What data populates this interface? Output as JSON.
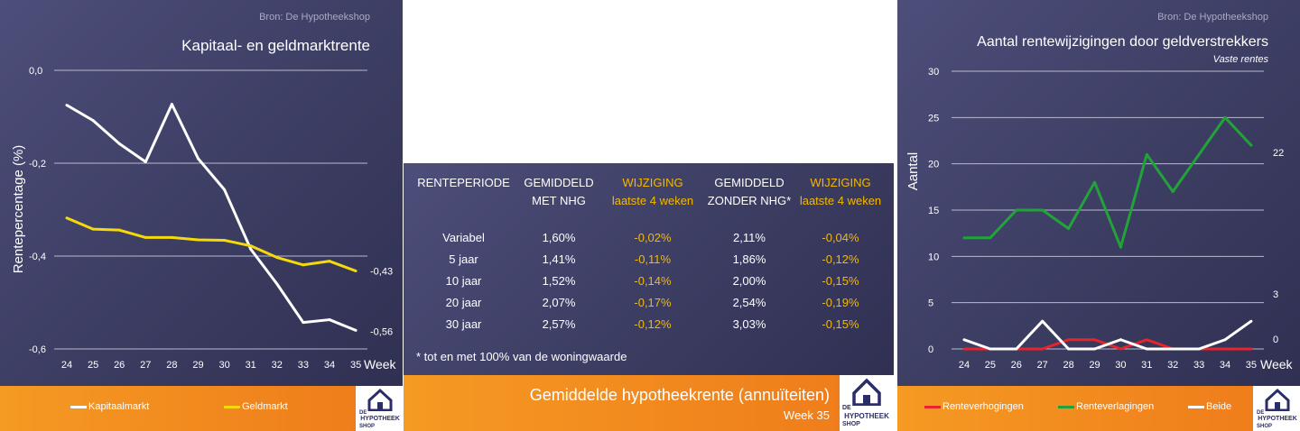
{
  "left_panel": {
    "source": "Bron: De Hypotheekshop",
    "title": "Kapitaal- en geldmarktrente",
    "legend": [
      "Kapitaalmarkt",
      "Geldmarkt"
    ]
  },
  "middle_panel": {
    "headers": [
      {
        "line1": "RENTEPERIODE",
        "line2": ""
      },
      {
        "line1": "GEMIDDELD",
        "line2": "MET NHG"
      },
      {
        "line1": "WIJZIGING",
        "line2": "laatste 4 weken"
      },
      {
        "line1": "GEMIDDELD",
        "line2": "ZONDER NHG*"
      },
      {
        "line1": "WIJZIGING",
        "line2": "laatste 4 weken"
      }
    ],
    "rows": [
      [
        "Variabel",
        "1,60%",
        "-0,02%",
        "2,11%",
        "-0,04%"
      ],
      [
        "5 jaar",
        "1,41%",
        "-0,11%",
        "1,86%",
        "-0,12%"
      ],
      [
        "10 jaar",
        "1,52%",
        "-0,14%",
        "2,00%",
        "-0,15%"
      ],
      [
        "20 jaar",
        "2,07%",
        "-0,17%",
        "2,54%",
        "-0,19%"
      ],
      [
        "30 jaar",
        "2,57%",
        "-0,12%",
        "3,03%",
        "-0,15%"
      ]
    ],
    "footnote": "* tot en met 100% van de woningwaarde",
    "footer_title": "Gemiddelde hypotheekrente (annuïteiten)",
    "footer_week": "Week 35"
  },
  "right_panel": {
    "source": "Bron: De Hypotheekshop",
    "title": "Aantal rentewijzigingen door geldverstrekkers",
    "subtitle": "Vaste rentes",
    "legend": [
      "Renteverhogingen",
      "Renteverlagingen",
      "Beide"
    ]
  },
  "logo": {
    "line1": "DE",
    "line2": "HYPOTHEEK",
    "line3": "SHOP"
  },
  "colors": {
    "white": "#ffffff",
    "yellow": "#f5d90a",
    "red": "#e8232a",
    "green": "#22a33a",
    "orange": "#f0861f",
    "panel": "#41426a"
  },
  "chart_data": [
    {
      "type": "line",
      "title": "Kapitaal- en geldmarktrente",
      "xlabel": "Week",
      "ylabel": "Rentepercentage (%)",
      "categories": [
        "24",
        "25",
        "26",
        "27",
        "28",
        "29",
        "30",
        "31",
        "32",
        "33",
        "34",
        "35"
      ],
      "ylim": [
        -0.6,
        0.0
      ],
      "yticks": [
        "0,0",
        "-0,2",
        "-0,4",
        "-0,6"
      ],
      "ytick_values": [
        0.0,
        -0.2,
        -0.4,
        -0.6
      ],
      "grid": true,
      "legend_position": "bottom",
      "series": [
        {
          "name": "Kapitaalmarkt",
          "color": "#ffffff",
          "values": [
            -0.075,
            -0.108,
            -0.158,
            -0.197,
            -0.073,
            -0.19,
            -0.257,
            -0.385,
            -0.46,
            -0.543,
            -0.537,
            -0.56
          ],
          "end_label": "-0,56"
        },
        {
          "name": "Geldmarkt",
          "color": "#f5d90a",
          "values": [
            -0.318,
            -0.342,
            -0.344,
            -0.36,
            -0.36,
            -0.365,
            -0.366,
            -0.378,
            -0.403,
            -0.419,
            -0.411,
            -0.432
          ],
          "end_label": "-0,43"
        }
      ]
    },
    {
      "type": "line",
      "title": "Aantal rentewijzigingen door geldverstrekkers",
      "subtitle": "Vaste rentes",
      "xlabel": "Week",
      "ylabel": "Aantal",
      "categories": [
        "24",
        "25",
        "26",
        "27",
        "28",
        "29",
        "30",
        "31",
        "32",
        "33",
        "34",
        "35"
      ],
      "ylim": [
        0,
        30
      ],
      "yticks": [
        "0",
        "5",
        "10",
        "15",
        "20",
        "25",
        "30"
      ],
      "ytick_values": [
        0,
        5,
        10,
        15,
        20,
        25,
        30
      ],
      "grid": true,
      "legend_position": "bottom",
      "series": [
        {
          "name": "Renteverhogingen",
          "color": "#e8232a",
          "values": [
            0,
            0,
            0,
            0,
            1,
            1,
            0,
            1,
            0,
            0,
            0,
            0
          ],
          "end_label": "0"
        },
        {
          "name": "Renteverlagingen",
          "color": "#22a33a",
          "values": [
            12,
            12,
            15,
            15,
            13,
            18,
            11,
            21,
            17,
            21,
            25,
            22
          ],
          "end_label": "22"
        },
        {
          "name": "Beide",
          "color": "#ffffff",
          "values": [
            1,
            0,
            0,
            3,
            0,
            0,
            1,
            0,
            0,
            0,
            1,
            3
          ],
          "end_label": "3"
        }
      ]
    }
  ]
}
